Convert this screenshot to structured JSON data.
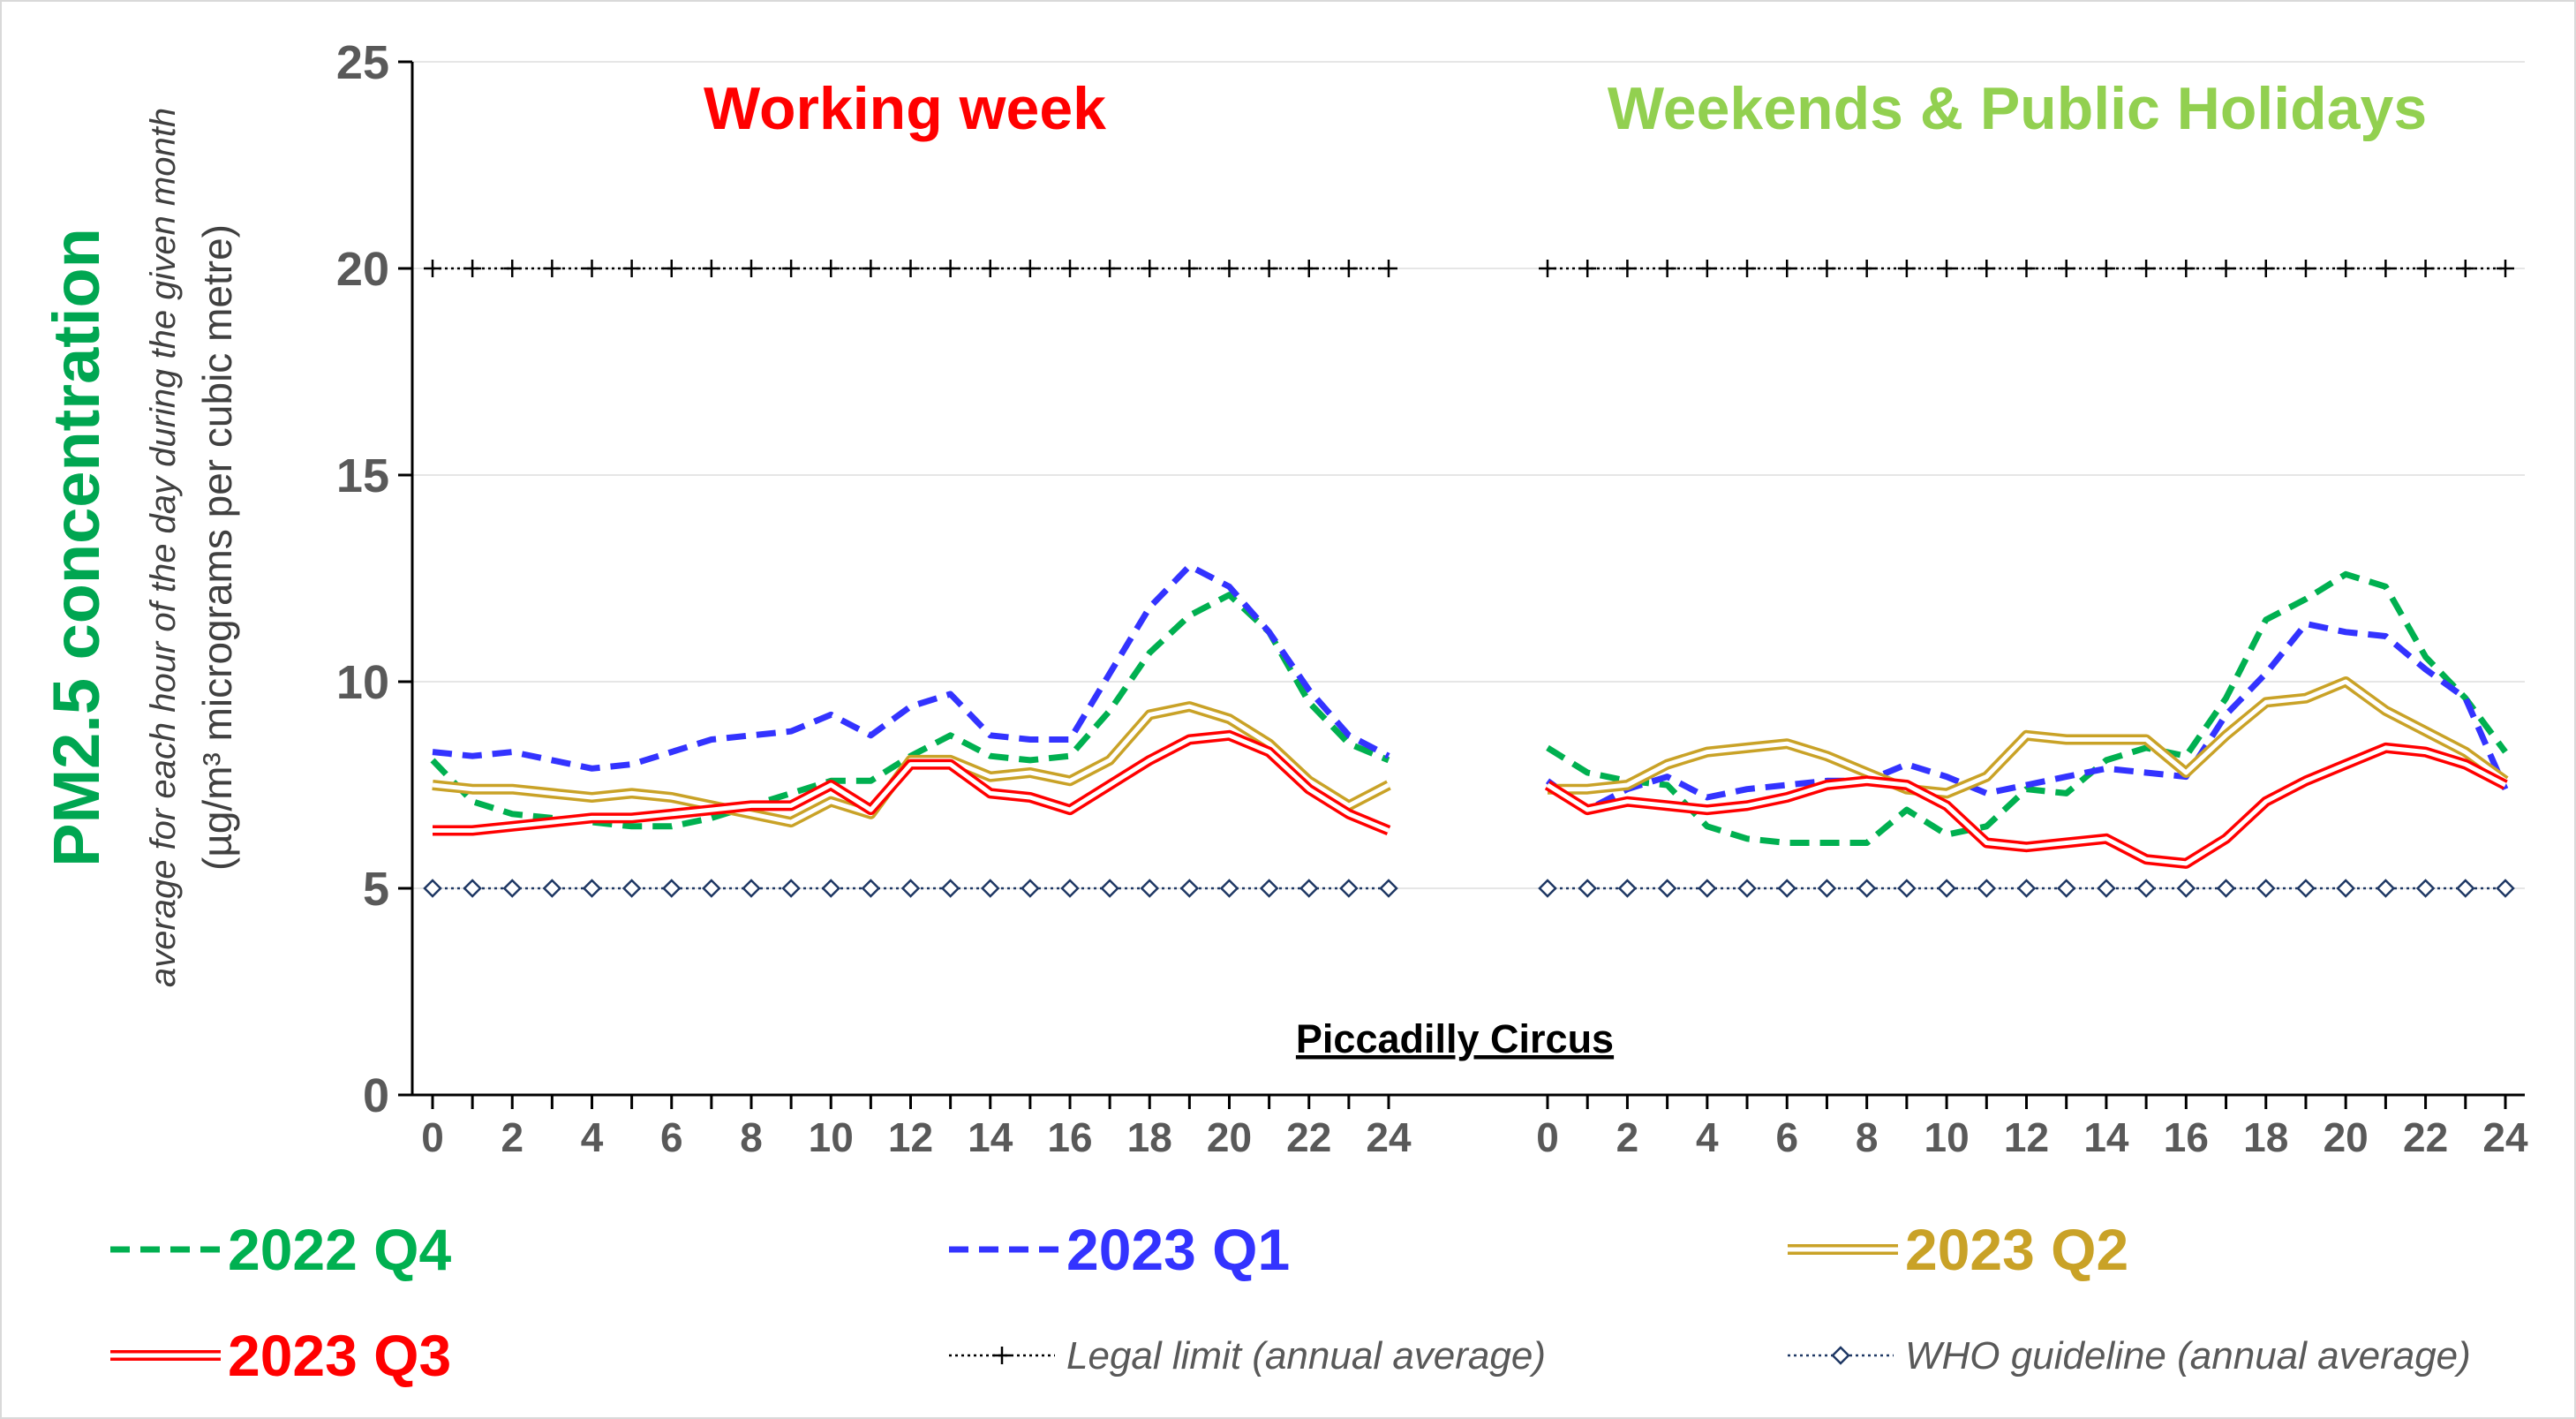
{
  "chart_data": {
    "type": "line",
    "location_label": "Piccadilly Circus",
    "y_title": "PM2.5 concentration",
    "y_subtitle": "average for each hour of the day during the given month",
    "y_units": "(µg/m³ micrograms per cubic metre)",
    "ylim": [
      0,
      25
    ],
    "y_ticks": [
      "0",
      "5",
      "10",
      "15",
      "20",
      "25"
    ],
    "x_ticks": [
      "0",
      "2",
      "4",
      "6",
      "8",
      "10",
      "12",
      "14",
      "16",
      "18",
      "20",
      "22",
      "24"
    ],
    "x_range": [
      0,
      24
    ],
    "grid": "horizontal",
    "legend_placement": "bottom",
    "reference_lines": [
      {
        "key": "legal",
        "name": "Legal limit (annual average)",
        "value": 20,
        "color": "#000000",
        "marker": "plus"
      },
      {
        "key": "who",
        "name": "WHO guideline (annual average)",
        "value": 5,
        "color": "#1f3864",
        "marker": "diamond"
      }
    ],
    "panels": [
      {
        "key": "working",
        "title": "Working week",
        "title_color": "#ff0000",
        "series": [
          {
            "name": "2022 Q4",
            "color": "#00b050",
            "style": "dashed",
            "x": [
              0,
              1,
              2,
              3,
              4,
              5,
              6,
              7,
              8,
              9,
              10,
              11,
              12,
              13,
              14,
              15,
              16,
              17,
              18,
              19,
              20,
              21,
              22,
              23,
              24
            ],
            "values": [
              8.1,
              7.1,
              6.8,
              6.7,
              6.6,
              6.5,
              6.5,
              6.7,
              7.0,
              7.3,
              7.6,
              7.6,
              8.2,
              8.7,
              8.2,
              8.1,
              8.2,
              9.3,
              10.7,
              11.6,
              12.1,
              11.2,
              9.5,
              8.5,
              8.1
            ]
          },
          {
            "name": "2023 Q1",
            "color": "#3333ff",
            "style": "dashed",
            "x": [
              0,
              1,
              2,
              3,
              4,
              5,
              6,
              7,
              8,
              9,
              10,
              11,
              12,
              13,
              14,
              15,
              16,
              17,
              18,
              19,
              20,
              21,
              22,
              23,
              24
            ],
            "values": [
              8.3,
              8.2,
              8.3,
              8.1,
              7.9,
              8.0,
              8.3,
              8.6,
              8.7,
              8.8,
              9.2,
              8.7,
              9.4,
              9.7,
              8.7,
              8.6,
              8.6,
              10.2,
              11.8,
              12.8,
              12.3,
              11.2,
              9.8,
              8.7,
              8.2
            ]
          },
          {
            "name": "2023 Q2",
            "color": "#c9a227",
            "style": "double",
            "x": [
              0,
              1,
              2,
              3,
              4,
              5,
              6,
              7,
              8,
              9,
              10,
              11,
              12,
              13,
              14,
              15,
              16,
              17,
              18,
              19,
              20,
              21,
              22,
              23,
              24
            ],
            "values": [
              7.5,
              7.4,
              7.4,
              7.3,
              7.2,
              7.3,
              7.2,
              7.0,
              6.8,
              6.6,
              7.1,
              6.8,
              8.1,
              8.1,
              7.7,
              7.8,
              7.6,
              8.1,
              9.2,
              9.4,
              9.1,
              8.5,
              7.6,
              7.0,
              7.5
            ]
          },
          {
            "name": "2023 Q3",
            "color": "#ff0000",
            "style": "double",
            "x": [
              0,
              1,
              2,
              3,
              4,
              5,
              6,
              7,
              8,
              9,
              10,
              11,
              12,
              13,
              14,
              15,
              16,
              17,
              18,
              19,
              20,
              21,
              22,
              23,
              24
            ],
            "values": [
              6.4,
              6.4,
              6.5,
              6.6,
              6.7,
              6.7,
              6.8,
              6.9,
              7.0,
              7.0,
              7.5,
              6.9,
              8.0,
              8.0,
              7.3,
              7.2,
              6.9,
              7.5,
              8.1,
              8.6,
              8.7,
              8.3,
              7.4,
              6.8,
              6.4
            ]
          }
        ]
      },
      {
        "key": "weekend",
        "title": "Weekends & Public Holidays",
        "title_color": "#92d050",
        "series": [
          {
            "name": "2022 Q4",
            "color": "#00b050",
            "style": "dashed",
            "x": [
              0,
              1,
              2,
              3,
              4,
              5,
              6,
              7,
              8,
              9,
              10,
              11,
              12,
              13,
              14,
              15,
              16,
              17,
              18,
              19,
              20,
              21,
              22,
              23,
              24
            ],
            "values": [
              8.4,
              7.8,
              7.6,
              7.5,
              6.5,
              6.2,
              6.1,
              6.1,
              6.1,
              6.9,
              6.3,
              6.5,
              7.4,
              7.3,
              8.1,
              8.4,
              8.2,
              9.6,
              11.5,
              12.0,
              12.6,
              12.3,
              10.6,
              9.6,
              8.3
            ]
          },
          {
            "name": "2023 Q1",
            "color": "#3333ff",
            "style": "dashed",
            "x": [
              0,
              1,
              2,
              3,
              4,
              5,
              6,
              7,
              8,
              9,
              10,
              11,
              12,
              13,
              14,
              15,
              16,
              17,
              18,
              19,
              20,
              21,
              22,
              23,
              24
            ],
            "values": [
              7.6,
              6.9,
              7.4,
              7.7,
              7.2,
              7.4,
              7.5,
              7.6,
              7.6,
              8.0,
              7.7,
              7.3,
              7.5,
              7.7,
              7.9,
              7.8,
              7.7,
              9.2,
              10.2,
              11.4,
              11.2,
              11.1,
              10.3,
              9.6,
              7.4
            ]
          },
          {
            "name": "2023 Q2",
            "color": "#c9a227",
            "style": "double",
            "x": [
              0,
              1,
              2,
              3,
              4,
              5,
              6,
              7,
              8,
              9,
              10,
              11,
              12,
              13,
              14,
              15,
              16,
              17,
              18,
              19,
              20,
              21,
              22,
              23,
              24
            ],
            "values": [
              7.4,
              7.4,
              7.5,
              8.0,
              8.3,
              8.4,
              8.5,
              8.2,
              7.8,
              7.4,
              7.3,
              7.7,
              8.7,
              8.6,
              8.6,
              8.6,
              7.8,
              8.7,
              9.5,
              9.6,
              10.0,
              9.3,
              8.8,
              8.3,
              7.6
            ]
          },
          {
            "name": "2023 Q3",
            "color": "#ff0000",
            "style": "double",
            "x": [
              0,
              1,
              2,
              3,
              4,
              5,
              6,
              7,
              8,
              9,
              10,
              11,
              12,
              13,
              14,
              15,
              16,
              17,
              18,
              19,
              20,
              21,
              22,
              23,
              24
            ],
            "values": [
              7.5,
              6.9,
              7.1,
              7.0,
              6.9,
              7.0,
              7.2,
              7.5,
              7.6,
              7.5,
              7.0,
              6.1,
              6.0,
              6.1,
              6.2,
              5.7,
              5.6,
              6.2,
              7.1,
              7.6,
              8.0,
              8.4,
              8.3,
              8.0,
              7.5
            ]
          }
        ]
      }
    ]
  }
}
